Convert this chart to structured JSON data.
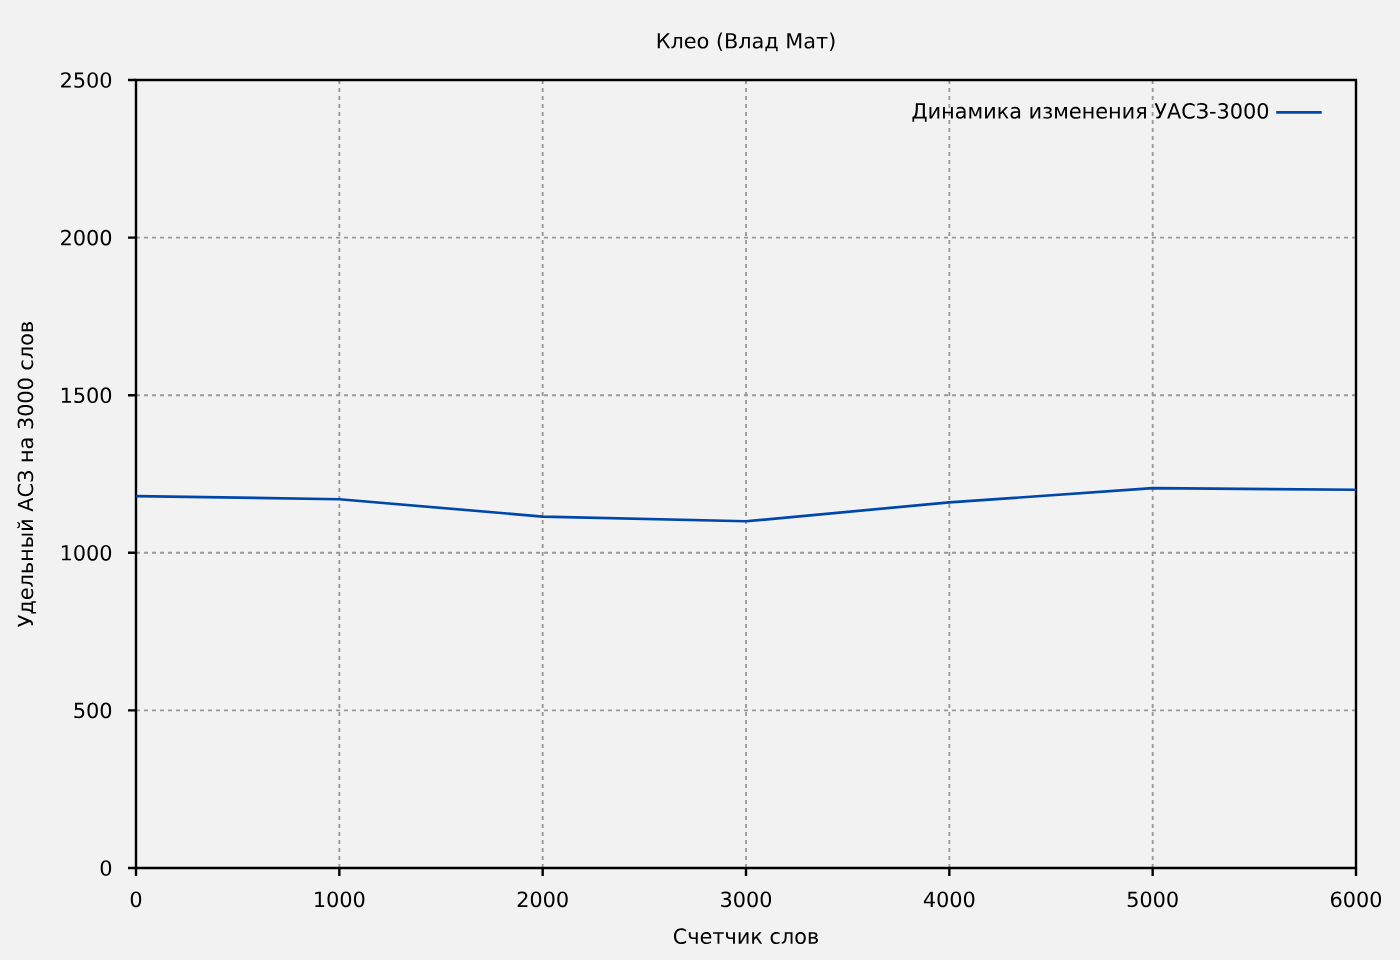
{
  "chart_data": {
    "type": "line",
    "title": "Клео (Влад Мат)",
    "xlabel": "Счетчик слов",
    "ylabel": "Удельный АСЗ на 3000 слов",
    "x": [
      0,
      1000,
      2000,
      3000,
      4000,
      5000,
      6000
    ],
    "series": [
      {
        "name": "Динамика изменения УАСЗ-3000",
        "color": "#0047ab",
        "values": [
          1180,
          1170,
          1115,
          1100,
          1160,
          1205,
          1200
        ]
      }
    ],
    "xlim": [
      0,
      6000
    ],
    "ylim": [
      0,
      2500
    ],
    "xticks": [
      0,
      1000,
      2000,
      3000,
      4000,
      5000,
      6000
    ],
    "yticks": [
      0,
      500,
      1000,
      1500,
      2000,
      2500
    ],
    "grid": true,
    "legend": "top right",
    "marker": "none",
    "line_style": "solid"
  }
}
